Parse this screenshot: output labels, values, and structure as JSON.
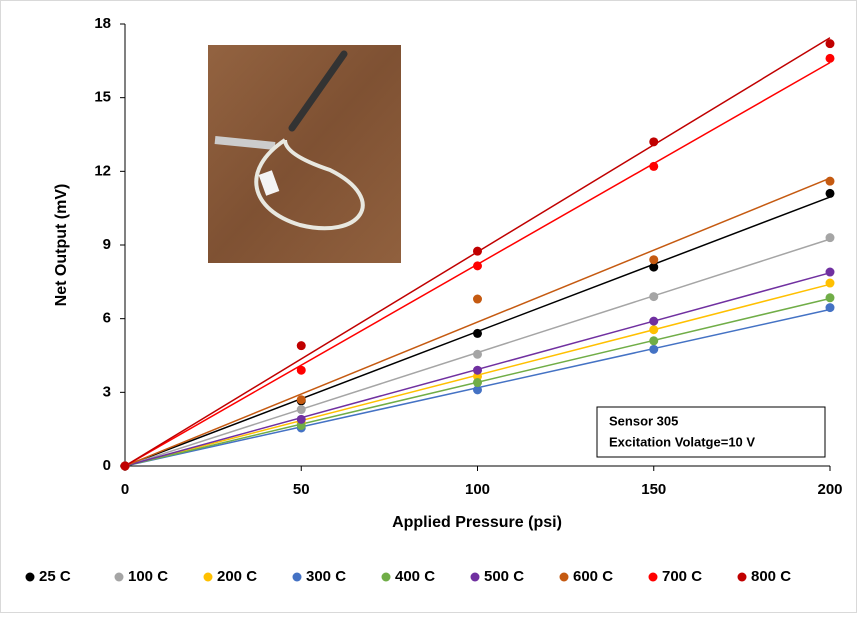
{
  "chart_data": {
    "type": "scatter",
    "x_label": "Applied Pressure (psi)",
    "y_label": "Net Output (mV)",
    "x": [
      0,
      50,
      100,
      150,
      200
    ],
    "series": [
      {
        "name": "25 C",
        "color": "#000000",
        "values": [
          0,
          2.65,
          5.4,
          8.1,
          11.1
        ]
      },
      {
        "name": "100 C",
        "color": "#a5a5a5",
        "values": [
          0,
          2.3,
          4.55,
          6.9,
          9.3
        ]
      },
      {
        "name": "200 C",
        "color": "#ffc000",
        "values": [
          0,
          1.75,
          3.65,
          5.55,
          7.45
        ]
      },
      {
        "name": "300 C",
        "color": "#4472c4",
        "values": [
          0,
          1.55,
          3.1,
          4.75,
          6.45
        ]
      },
      {
        "name": "400 C",
        "color": "#70ad47",
        "values": [
          0,
          1.65,
          3.4,
          5.1,
          6.85
        ]
      },
      {
        "name": "500 C",
        "color": "#7030a0",
        "values": [
          0,
          1.9,
          3.9,
          5.9,
          7.9
        ]
      },
      {
        "name": "600 C",
        "color": "#c55a11",
        "values": [
          0,
          2.7,
          6.8,
          8.4,
          11.6
        ]
      },
      {
        "name": "700 C",
        "color": "#ff0000",
        "values": [
          0,
          3.9,
          8.15,
          12.2,
          16.6
        ]
      },
      {
        "name": "800 C",
        "color": "#c00000",
        "values": [
          0,
          4.9,
          8.75,
          13.2,
          17.2
        ]
      }
    ],
    "xlim": [
      0,
      200
    ],
    "xticks": [
      0,
      50,
      100,
      150,
      200
    ],
    "ylim": [
      0,
      18
    ],
    "yticks": [
      0,
      3,
      6,
      9,
      12,
      15,
      18
    ],
    "trendline": true,
    "grid": false,
    "legend": "bottom",
    "annotation": [
      "Sensor 305",
      "Excitation Volatge=10 V"
    ]
  }
}
